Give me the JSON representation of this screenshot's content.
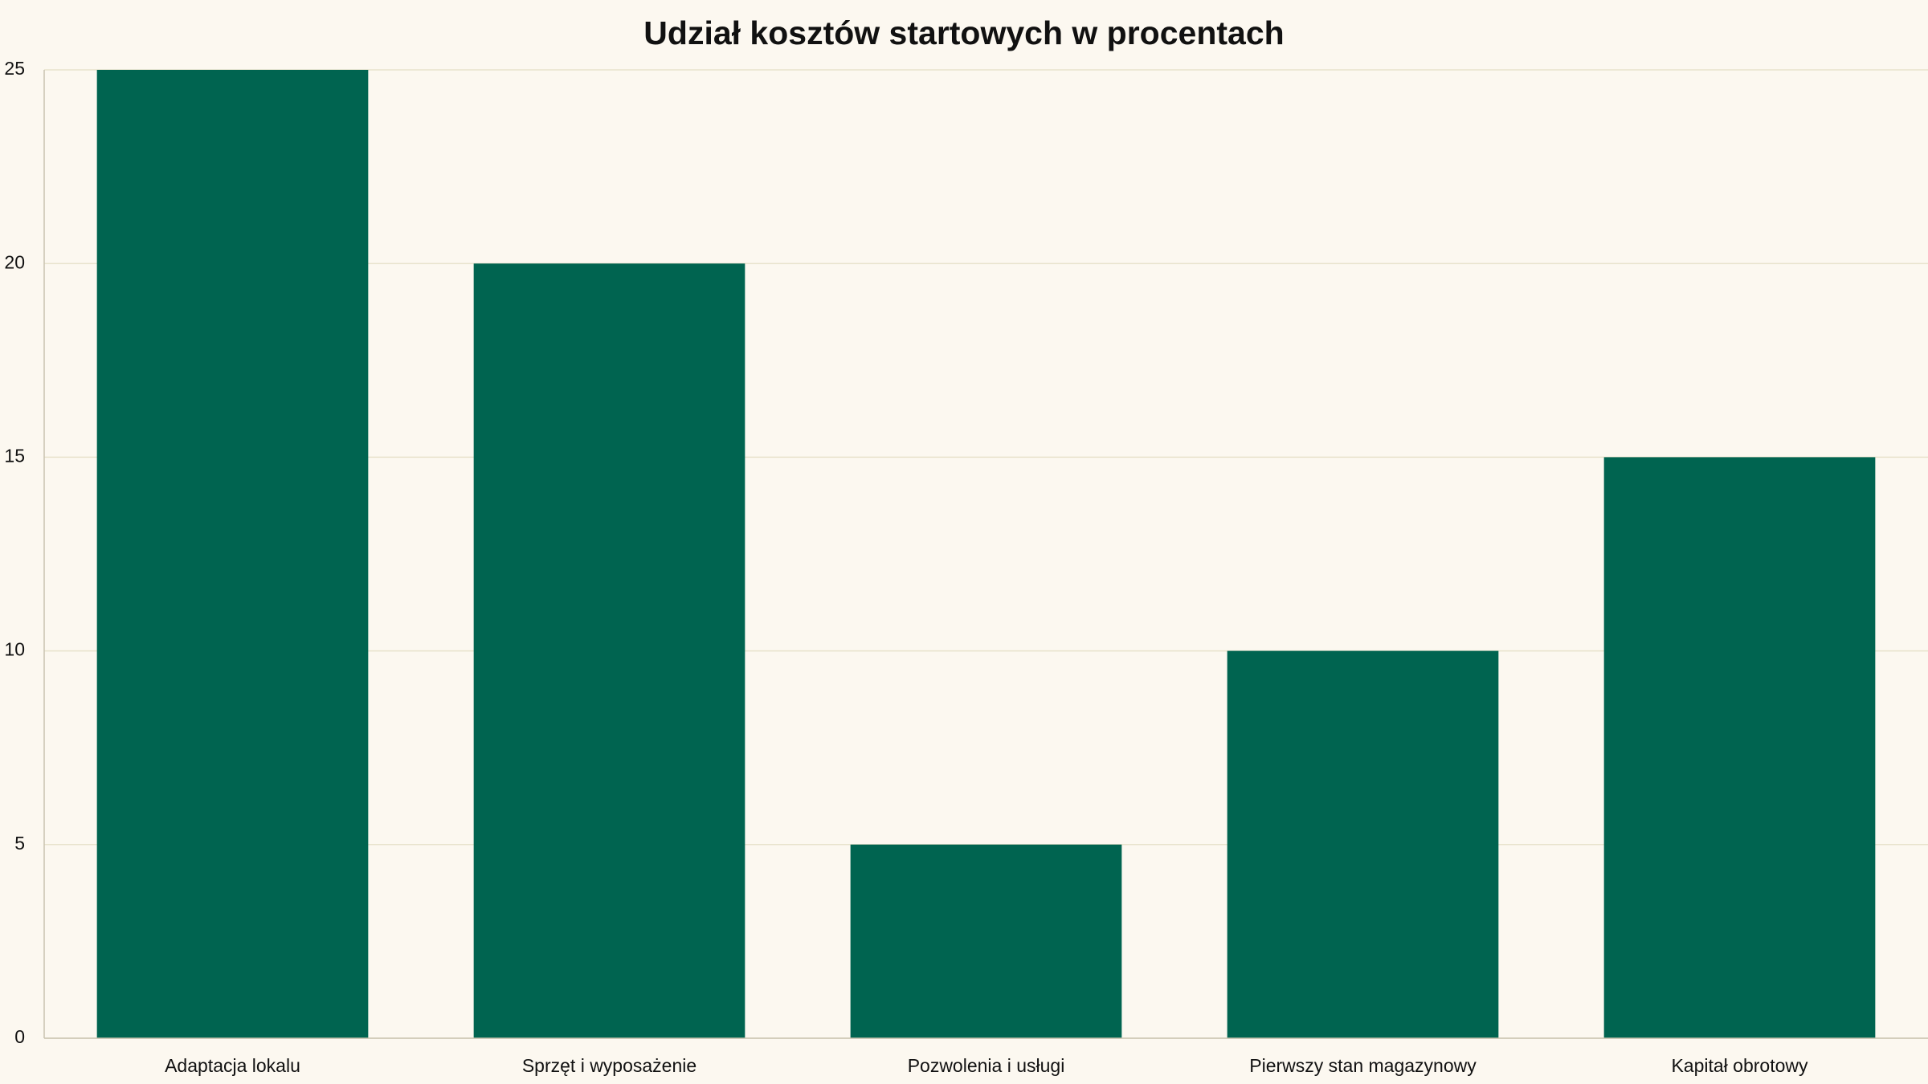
{
  "chart_data": {
    "type": "bar",
    "title": "Udział kosztów startowych w procentach",
    "categories": [
      "Adaptacja lokalu",
      "Sprzęt i wyposażenie",
      "Pozwolenia i usługi",
      "Pierwszy stan magazynowy",
      "Kapitał obrotowy"
    ],
    "values": [
      25,
      20,
      5,
      10,
      15
    ],
    "color": "#006450",
    "ylim": [
      0,
      25
    ],
    "yticks": [
      0,
      5,
      10,
      15,
      20,
      25
    ],
    "grid": true
  }
}
